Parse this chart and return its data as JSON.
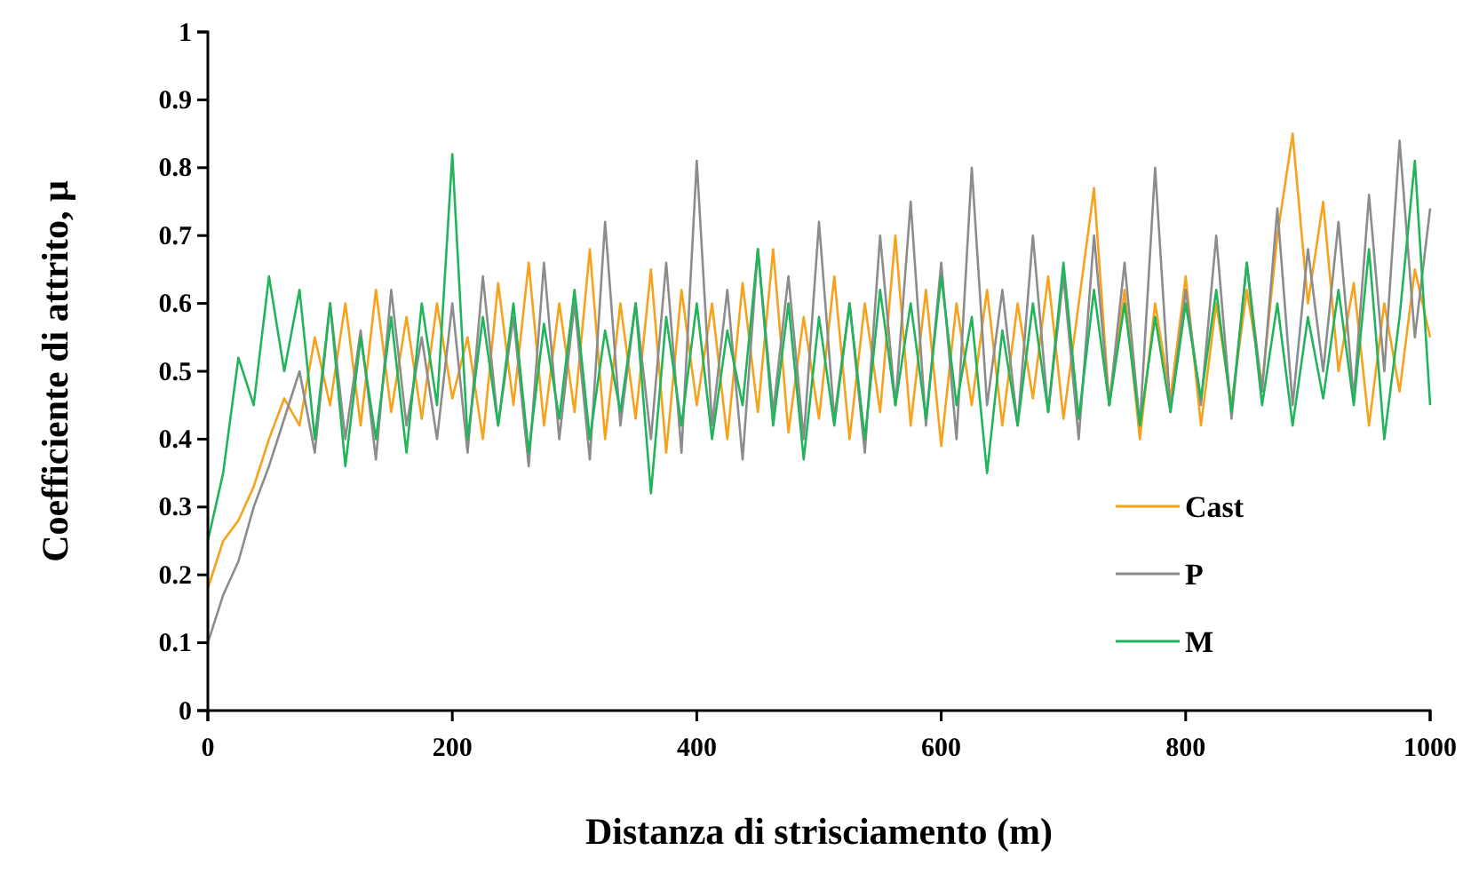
{
  "chart_data": {
    "type": "line",
    "xlabel": "Distanza di strisciamento (m)",
    "ylabel": "Coefficiente di attrito, μ",
    "x": [
      0,
      12.5,
      25,
      37.5,
      50,
      62.5,
      75,
      87.5,
      100,
      112.5,
      125,
      137.5,
      150,
      162.5,
      175,
      187.5,
      200,
      212.5,
      225,
      237.5,
      250,
      262.5,
      275,
      287.5,
      300,
      312.5,
      325,
      337.5,
      350,
      362.5,
      375,
      387.5,
      400,
      412.5,
      425,
      437.5,
      450,
      462.5,
      475,
      487.5,
      500,
      512.5,
      525,
      537.5,
      550,
      562.5,
      575,
      587.5,
      600,
      612.5,
      625,
      637.5,
      650,
      662.5,
      675,
      687.5,
      700,
      712.5,
      725,
      737.5,
      750,
      762.5,
      775,
      787.5,
      800,
      812.5,
      825,
      837.5,
      850,
      862.5,
      875,
      887.5,
      900,
      912.5,
      925,
      937.5,
      950,
      962.5,
      975,
      987.5,
      1000
    ],
    "series": [
      {
        "name": "Cast",
        "color": "#f7a21b",
        "values": [
          0.18,
          0.25,
          0.28,
          0.33,
          0.4,
          0.46,
          0.42,
          0.55,
          0.45,
          0.6,
          0.42,
          0.62,
          0.44,
          0.58,
          0.43,
          0.6,
          0.46,
          0.55,
          0.4,
          0.63,
          0.45,
          0.66,
          0.42,
          0.6,
          0.44,
          0.68,
          0.4,
          0.6,
          0.43,
          0.65,
          0.38,
          0.62,
          0.45,
          0.6,
          0.4,
          0.63,
          0.44,
          0.68,
          0.41,
          0.58,
          0.43,
          0.64,
          0.4,
          0.6,
          0.44,
          0.7,
          0.42,
          0.62,
          0.39,
          0.6,
          0.45,
          0.62,
          0.42,
          0.6,
          0.46,
          0.64,
          0.43,
          0.6,
          0.77,
          0.45,
          0.62,
          0.4,
          0.6,
          0.46,
          0.64,
          0.42,
          0.6,
          0.45,
          0.62,
          0.48,
          0.7,
          0.85,
          0.6,
          0.75,
          0.5,
          0.63,
          0.42,
          0.6,
          0.47,
          0.65,
          0.55
        ]
      },
      {
        "name": "P",
        "color": "#8c8c8c",
        "values": [
          0.1,
          0.17,
          0.22,
          0.3,
          0.36,
          0.43,
          0.5,
          0.38,
          0.6,
          0.4,
          0.56,
          0.37,
          0.62,
          0.42,
          0.55,
          0.4,
          0.6,
          0.38,
          0.64,
          0.42,
          0.58,
          0.36,
          0.66,
          0.4,
          0.6,
          0.37,
          0.72,
          0.42,
          0.6,
          0.4,
          0.66,
          0.38,
          0.81,
          0.42,
          0.62,
          0.37,
          0.68,
          0.44,
          0.64,
          0.4,
          0.72,
          0.43,
          0.6,
          0.38,
          0.7,
          0.45,
          0.75,
          0.42,
          0.66,
          0.4,
          0.8,
          0.45,
          0.62,
          0.42,
          0.7,
          0.44,
          0.64,
          0.4,
          0.7,
          0.45,
          0.66,
          0.42,
          0.8,
          0.44,
          0.62,
          0.45,
          0.7,
          0.43,
          0.66,
          0.47,
          0.74,
          0.45,
          0.68,
          0.5,
          0.72,
          0.46,
          0.76,
          0.5,
          0.84,
          0.55,
          0.74
        ]
      },
      {
        "name": "M",
        "color": "#22b45a",
        "values": [
          0.25,
          0.35,
          0.52,
          0.45,
          0.64,
          0.5,
          0.62,
          0.4,
          0.6,
          0.36,
          0.55,
          0.4,
          0.58,
          0.38,
          0.6,
          0.45,
          0.82,
          0.4,
          0.58,
          0.42,
          0.6,
          0.38,
          0.57,
          0.43,
          0.62,
          0.4,
          0.56,
          0.44,
          0.6,
          0.32,
          0.58,
          0.42,
          0.6,
          0.4,
          0.56,
          0.45,
          0.68,
          0.42,
          0.6,
          0.37,
          0.58,
          0.42,
          0.6,
          0.4,
          0.62,
          0.45,
          0.6,
          0.43,
          0.64,
          0.45,
          0.58,
          0.35,
          0.56,
          0.42,
          0.6,
          0.44,
          0.66,
          0.43,
          0.62,
          0.45,
          0.6,
          0.42,
          0.58,
          0.44,
          0.6,
          0.46,
          0.62,
          0.44,
          0.66,
          0.45,
          0.6,
          0.42,
          0.58,
          0.46,
          0.62,
          0.45,
          0.68,
          0.4,
          0.58,
          0.81,
          0.45
        ]
      }
    ],
    "xlim": [
      0,
      1000
    ],
    "xticks": [
      0,
      200,
      400,
      600,
      800,
      1000
    ],
    "ylim": [
      0,
      1
    ],
    "yticks": [
      0,
      0.1,
      0.2,
      0.3,
      0.4,
      0.5,
      0.6,
      0.7,
      0.8,
      0.9,
      1
    ],
    "legend": "bottom right",
    "grid": false,
    "marker": "none",
    "line_style": "solid"
  }
}
